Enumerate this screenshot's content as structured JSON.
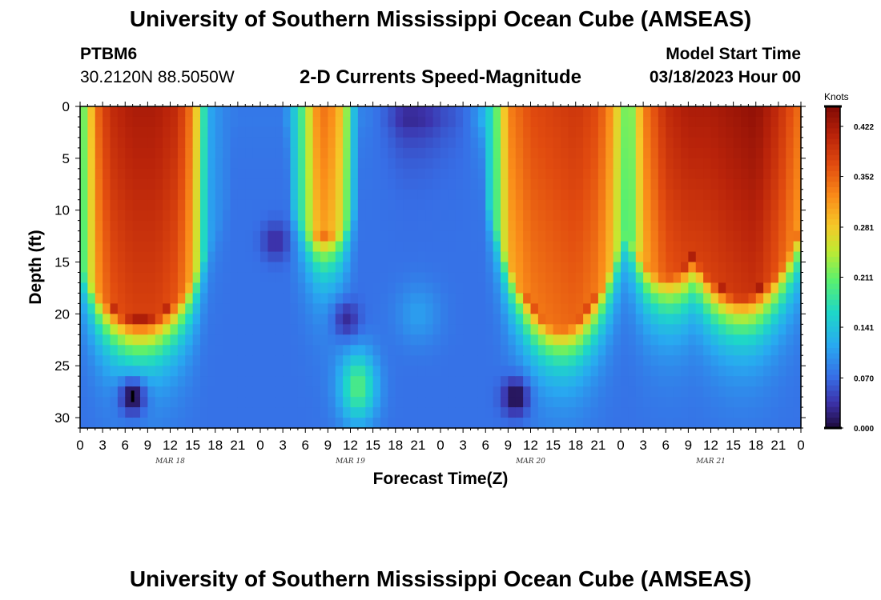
{
  "header": {
    "title": "University of Southern Mississippi Ocean Cube (AMSEAS)",
    "station": "PTBM6",
    "coordinates": "30.2120N  88.5050W",
    "subtitle": "2-D Currents Speed-Magnitude",
    "start_label": "Model Start Time",
    "start_value": "03/18/2023 Hour 00"
  },
  "footer": {
    "title": "University of Southern Mississippi Ocean Cube (AMSEAS)"
  },
  "chart_data": {
    "type": "heatmap",
    "title": "2-D Currents Speed-Magnitude",
    "xlabel": "Forecast Time(Z)",
    "ylabel": "Depth (ft)",
    "x_unit": "hours since model start",
    "xlim": [
      0,
      96
    ],
    "ylim": [
      31,
      0
    ],
    "x_tick_values": [
      0,
      3,
      6,
      9,
      12,
      15,
      18,
      21,
      24,
      27,
      30,
      33,
      36,
      39,
      42,
      45,
      48,
      51,
      54,
      57,
      60,
      63,
      66,
      69,
      72,
      75,
      78,
      81,
      84,
      87,
      90,
      93,
      96
    ],
    "x_tick_labels": [
      "0",
      "3",
      "6",
      "9",
      "12",
      "15",
      "18",
      "21",
      "0",
      "3",
      "6",
      "9",
      "12",
      "15",
      "18",
      "21",
      "0",
      "3",
      "6",
      "9",
      "12",
      "15",
      "18",
      "21",
      "0",
      "3",
      "6",
      "9",
      "12",
      "15",
      "18",
      "21",
      "0"
    ],
    "day_labels": [
      {
        "hour": 12,
        "label": "MAR 18"
      },
      {
        "hour": 36,
        "label": "MAR 19"
      },
      {
        "hour": 60,
        "label": "MAR 20"
      },
      {
        "hour": 84,
        "label": "MAR 21"
      }
    ],
    "y_ticks": [
      0,
      5,
      10,
      15,
      20,
      25,
      30
    ],
    "colorbar": {
      "unit": "Knots",
      "range": [
        0.0,
        0.45
      ],
      "tick_values": [
        0.0,
        0.07,
        0.141,
        0.211,
        0.281,
        0.352,
        0.422
      ],
      "tick_labels": [
        "0.000",
        "0.070",
        "0.141",
        "0.211",
        "0.281",
        "0.352",
        "0.422"
      ]
    },
    "grid": false,
    "grid_resolution": {
      "hours_step": 1,
      "depth_step_ft": 1
    },
    "surface_speed_knots": {
      "hours": [
        0,
        1,
        2,
        4,
        7,
        10,
        13,
        15,
        16,
        17,
        19,
        21,
        24,
        27,
        28,
        30,
        31,
        32,
        33,
        35,
        36,
        37,
        39,
        41,
        43,
        45,
        47,
        48,
        50,
        52,
        54,
        56,
        57,
        60,
        63,
        66,
        69,
        71,
        72,
        73,
        74,
        75,
        78,
        81,
        84,
        87,
        90,
        93,
        96
      ],
      "values": [
        0.2,
        0.24,
        0.34,
        0.4,
        0.42,
        0.42,
        0.4,
        0.33,
        0.23,
        0.12,
        0.09,
        0.08,
        0.08,
        0.08,
        0.12,
        0.22,
        0.3,
        0.34,
        0.34,
        0.28,
        0.18,
        0.09,
        0.08,
        0.06,
        0.03,
        0.03,
        0.04,
        0.05,
        0.06,
        0.08,
        0.13,
        0.24,
        0.33,
        0.37,
        0.38,
        0.39,
        0.37,
        0.31,
        0.24,
        0.2,
        0.25,
        0.33,
        0.4,
        0.42,
        0.42,
        0.43,
        0.44,
        0.4,
        0.34
      ]
    },
    "low_speed_pockets": [
      {
        "hour": 7,
        "depth_ft": 28,
        "speed_knots": 0.0
      },
      {
        "hour": 58,
        "depth_ft": 28,
        "speed_knots": 0.0
      },
      {
        "hour": 35.5,
        "depth_ft": 20.5,
        "speed_knots": 0.03
      },
      {
        "hour": 26,
        "depth_ft": 13,
        "speed_knots": 0.03
      }
    ]
  }
}
